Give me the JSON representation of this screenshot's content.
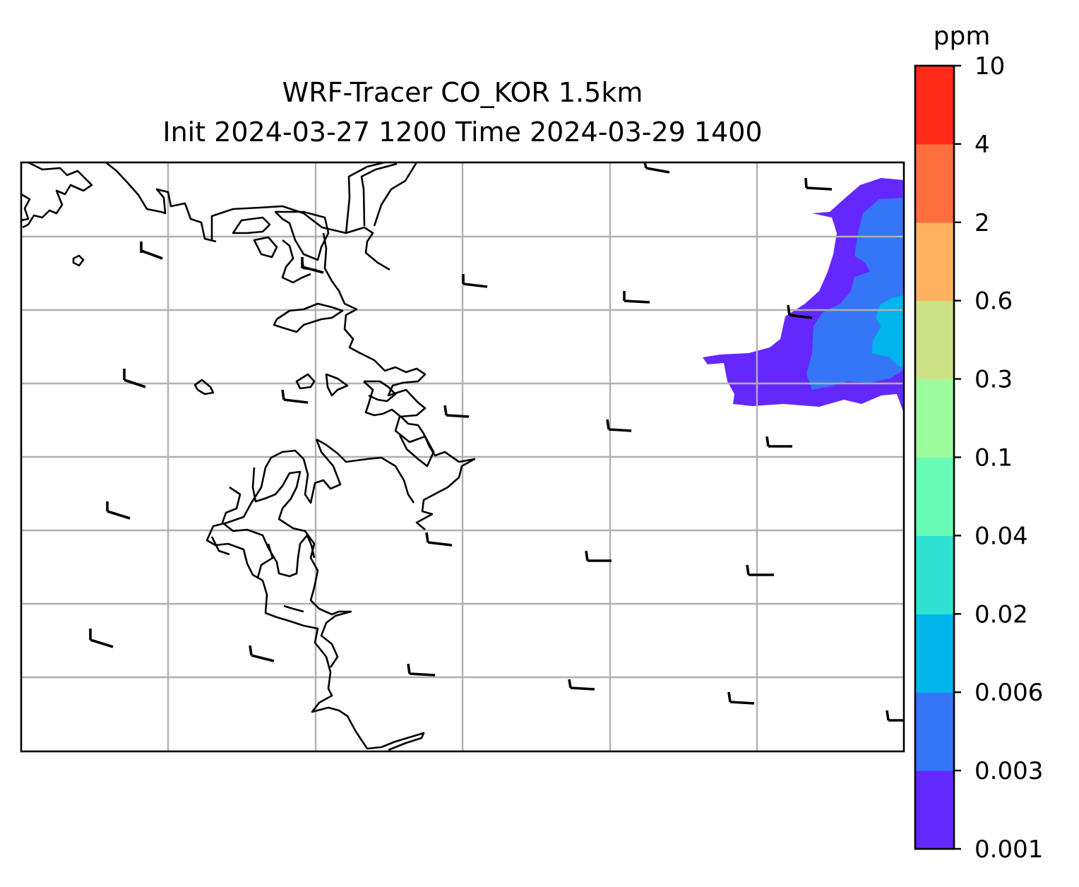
{
  "title": {
    "line1": "WRF-Tracer CO_KOR 1.5km",
    "line2": "Init 2024-03-27 1200 Time 2024-03-29 1400"
  },
  "colorbar": {
    "unit": "ppm",
    "levels": [
      "0.001",
      "0.003",
      "0.006",
      "0.02",
      "0.04",
      "0.1",
      "0.3",
      "0.6",
      "2",
      "4",
      "10"
    ],
    "colors": [
      "#6428ff",
      "#3476f6",
      "#00b5eb",
      "#2fe2d4",
      "#68fcb7",
      "#9cfd9d",
      "#cde186",
      "#ffb360",
      "#ff6e3d",
      "#ff2a17"
    ]
  },
  "map": {
    "gridlines": true,
    "coastline_color": "#000000",
    "grid_color": "#b0b0b0",
    "field_name": "CO tracer concentration",
    "wind_barbs": [
      {
        "row": 0,
        "col": 0
      },
      {
        "row": 0,
        "col": 1
      },
      {
        "row": 0,
        "col": 2
      },
      {
        "row": 0,
        "col": 3
      },
      {
        "row": 0,
        "col": 4
      },
      {
        "row": 0,
        "col": 5
      },
      {
        "row": 1,
        "col": 0
      },
      {
        "row": 1,
        "col": 1
      },
      {
        "row": 1,
        "col": 2
      },
      {
        "row": 1,
        "col": 3
      },
      {
        "row": 1,
        "col": 4
      },
      {
        "row": 1,
        "col": 5
      },
      {
        "row": 2,
        "col": 0
      },
      {
        "row": 2,
        "col": 1
      },
      {
        "row": 2,
        "col": 2
      },
      {
        "row": 2,
        "col": 3
      },
      {
        "row": 2,
        "col": 4
      },
      {
        "row": 3,
        "col": 0
      },
      {
        "row": 3,
        "col": 1
      },
      {
        "row": 3,
        "col": 2
      },
      {
        "row": 3,
        "col": 3
      },
      {
        "row": 3,
        "col": 4
      },
      {
        "row": 3,
        "col": 5
      }
    ]
  }
}
